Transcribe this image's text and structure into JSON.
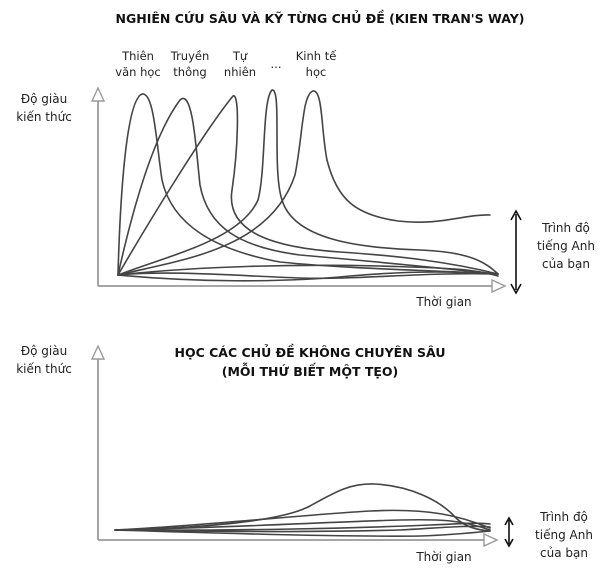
{
  "top_panel": {
    "title": "NGHIÊN CỨU SÂU VÀ KỸ TỪNG CHỦ ĐỀ (KIEN TRAN'S WAY)",
    "y_label_line1": "Độ giàu",
    "y_label_line2": "kiến thức",
    "x_label": "Thời gian",
    "topics": [
      {
        "line1": "Thiên",
        "line2": "văn học"
      },
      {
        "line1": "Truyền",
        "line2": "thông"
      },
      {
        "line1": "Tự",
        "line2": "nhiên"
      },
      {
        "line1": "...",
        "line2": ""
      },
      {
        "line1": "Kinh tế",
        "line2": "học"
      }
    ],
    "side_label_line1": "Trình độ",
    "side_label_line2": "tiếng Anh",
    "side_label_line3": "của bạn"
  },
  "bottom_panel": {
    "title_line1": "HỌC CÁC CHỦ ĐỀ KHÔNG CHUYÊN SÂU",
    "title_line2": "(MỖI THỨ BIẾT MỘT TẸO)",
    "y_label_line1": "Độ giàu",
    "y_label_line2": "kiến thức",
    "x_label": "Thời gian",
    "side_label_line1": "Trình độ",
    "side_label_line2": "tiếng Anh",
    "side_label_line3": "của bạn"
  }
}
